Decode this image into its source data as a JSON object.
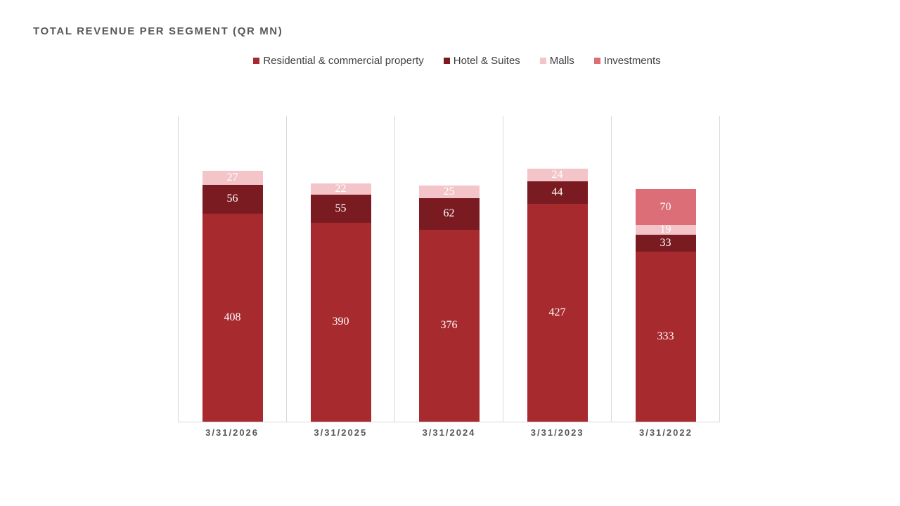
{
  "title": "TOTAL REVENUE PER SEGMENT (QR MN)",
  "chart_data": {
    "type": "bar",
    "stacked": true,
    "title": "TOTAL REVENUE PER SEGMENT (QR MN)",
    "categories": [
      "3/31/2026",
      "3/31/2025",
      "3/31/2024",
      "3/31/2023",
      "3/31/2022"
    ],
    "series": [
      {
        "name": "Residential & commercial property",
        "color": "#A72A2F",
        "values": [
          408,
          390,
          376,
          427,
          333
        ]
      },
      {
        "name": "Hotel & Suites",
        "color": "#7A1B21",
        "values": [
          56,
          55,
          62,
          44,
          33
        ]
      },
      {
        "name": "Malls",
        "color": "#F3C5C9",
        "values": [
          27,
          22,
          25,
          24,
          19
        ]
      },
      {
        "name": "Investments",
        "color": "#DC6E78",
        "values": [
          0,
          0,
          0,
          0,
          70
        ]
      }
    ],
    "ylim": [
      0,
      600
    ],
    "grid": "vertical category separators only",
    "legend_position": "top-center",
    "data_labels": "white labels centered in each non-zero segment",
    "axis_color": "#D9D9D9",
    "text_color": "#595959",
    "label_color": "#404040"
  }
}
